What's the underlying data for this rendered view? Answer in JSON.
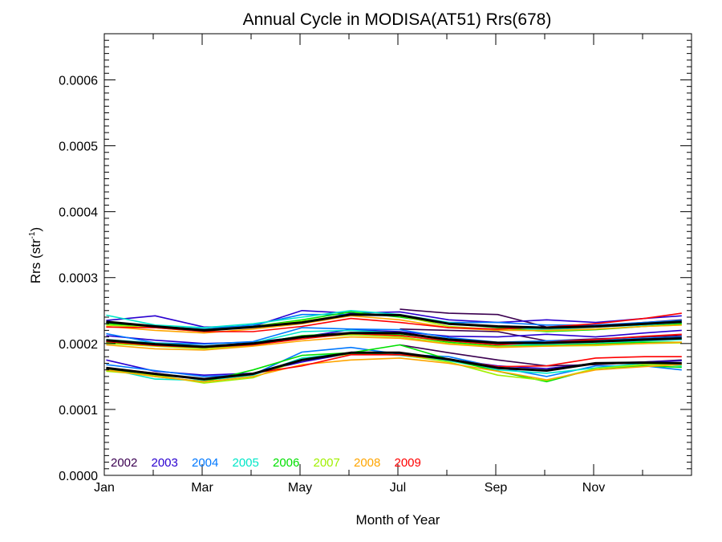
{
  "chart_data": {
    "type": "line",
    "title": "Annual Cycle in MODISA(AT51) Rrs(678)",
    "xlabel": "Month of Year",
    "ylabel_main": "Rrs (str",
    "ylabel_sup": "-1",
    "ylabel_close": ")",
    "xlim": [
      0,
      12
    ],
    "ylim": [
      0,
      0.00067
    ],
    "xticks": [
      {
        "value": 0,
        "label": "Jan"
      },
      {
        "value": 2,
        "label": "Mar"
      },
      {
        "value": 4,
        "label": "May"
      },
      {
        "value": 6,
        "label": "Jul"
      },
      {
        "value": 8,
        "label": "Sep"
      },
      {
        "value": 10,
        "label": "Nov"
      }
    ],
    "yticks": [
      {
        "value": 0.0,
        "label": "0.0000"
      },
      {
        "value": 0.0001,
        "label": "0.0001"
      },
      {
        "value": 0.0002,
        "label": "0.0002"
      },
      {
        "value": 0.0003,
        "label": "0.0003"
      },
      {
        "value": 0.0004,
        "label": "0.0004"
      },
      {
        "value": 0.0005,
        "label": "0.0005"
      },
      {
        "value": 0.0006,
        "label": "0.0006"
      }
    ],
    "x": [
      0.04,
      1.04,
      2.04,
      3.04,
      4.04,
      5.04,
      6.04,
      7.04,
      8.04,
      9.04,
      10.04,
      11.04,
      11.8
    ],
    "legend_position": "bottom-left",
    "series": [
      {
        "name": "2002",
        "color": "#3b0050",
        "upper": [
          null,
          null,
          null,
          null,
          null,
          null,
          0.000252,
          0.000246,
          0.000244,
          0.000225,
          0.000227,
          0.000232,
          0.000236
        ],
        "mean": [
          null,
          null,
          null,
          null,
          null,
          null,
          0.000222,
          0.00022,
          0.000218,
          0.000204,
          0.000207,
          0.00021,
          0.000212
        ],
        "lower": [
          null,
          null,
          null,
          null,
          null,
          null,
          0.000198,
          0.000186,
          0.000175,
          0.000166,
          0.000168,
          0.000172,
          0.000175
        ]
      },
      {
        "name": "2003",
        "color": "#2a00d0",
        "upper": [
          0.000235,
          0.000242,
          0.000225,
          0.000226,
          0.00025,
          0.000246,
          0.000248,
          0.000236,
          0.000232,
          0.000236,
          0.000232,
          0.000238,
          0.000242
        ],
        "mean": [
          0.000212,
          0.000205,
          0.0002,
          0.000202,
          0.00021,
          0.000221,
          0.000218,
          0.000211,
          0.00021,
          0.000214,
          0.00021,
          0.000216,
          0.00022
        ],
        "lower": [
          0.000175,
          0.000158,
          0.000152,
          0.000155,
          0.000172,
          0.000185,
          0.000186,
          0.000176,
          0.000166,
          0.000162,
          0.00017,
          0.000172,
          0.000174
        ]
      },
      {
        "name": "2004",
        "color": "#0078ff",
        "upper": [
          0.000232,
          0.000226,
          0.000222,
          0.000228,
          0.000244,
          0.000244,
          0.000243,
          0.000232,
          0.000232,
          0.000228,
          0.000228,
          0.000232,
          0.000235
        ],
        "mean": [
          0.000215,
          0.000201,
          0.000199,
          0.000203,
          0.000224,
          0.000222,
          0.000221,
          0.000209,
          0.000202,
          0.000204,
          0.000205,
          0.000208,
          0.00021
        ],
        "lower": [
          0.000168,
          0.000159,
          0.00015,
          0.000153,
          0.000187,
          0.000194,
          0.000184,
          0.00018,
          0.000164,
          0.00015,
          0.000166,
          0.000166,
          0.00016
        ]
      },
      {
        "name": "2005",
        "color": "#00e6c8",
        "upper": [
          0.000243,
          0.000228,
          0.000224,
          0.00023,
          0.00024,
          0.00025,
          0.000244,
          0.000232,
          0.000224,
          0.000221,
          0.000225,
          0.000228,
          0.000232
        ],
        "mean": [
          0.000206,
          0.000201,
          0.000196,
          0.000201,
          0.000218,
          0.00022,
          0.000216,
          0.000205,
          0.000199,
          0.000198,
          0.0002,
          0.000204,
          0.000206
        ],
        "lower": [
          0.000162,
          0.000146,
          0.000144,
          0.000152,
          0.000178,
          0.000186,
          0.000182,
          0.000174,
          0.00016,
          0.000155,
          0.000163,
          0.00017,
          0.000166
        ]
      },
      {
        "name": "2006",
        "color": "#00e000",
        "upper": [
          0.00023,
          0.000226,
          0.000221,
          0.000226,
          0.000236,
          0.000248,
          0.00024,
          0.00023,
          0.000224,
          0.000218,
          0.000221,
          0.000226,
          0.00023
        ],
        "mean": [
          0.000202,
          0.000197,
          0.000194,
          0.000199,
          0.000212,
          0.000216,
          0.000213,
          0.000202,
          0.000196,
          0.000197,
          0.000199,
          0.000202,
          0.000202
        ],
        "lower": [
          0.000162,
          0.00015,
          0.000142,
          0.00016,
          0.000182,
          0.000186,
          0.000198,
          0.000176,
          0.000158,
          0.000142,
          0.000162,
          0.000166,
          0.000164
        ]
      },
      {
        "name": "2007",
        "color": "#a0f000",
        "upper": [
          0.000228,
          0.000224,
          0.000218,
          0.000226,
          0.000234,
          0.000244,
          0.000242,
          0.000226,
          0.000221,
          0.000219,
          0.000222,
          0.000226,
          0.000228
        ],
        "mean": [
          0.0002,
          0.000196,
          0.000192,
          0.000197,
          0.000209,
          0.000213,
          0.00021,
          0.0002,
          0.000195,
          0.000196,
          0.000197,
          0.0002,
          0.000201
        ],
        "lower": [
          0.000158,
          0.000152,
          0.00014,
          0.000148,
          0.000176,
          0.000184,
          0.000183,
          0.000172,
          0.000152,
          0.000144,
          0.000162,
          0.000168,
          0.000168
        ]
      },
      {
        "name": "2008",
        "color": "#ffa500",
        "upper": [
          0.000226,
          0.00022,
          0.000216,
          0.000222,
          0.00023,
          0.000242,
          0.000236,
          0.000224,
          0.00022,
          0.00022,
          0.000222,
          0.000226,
          0.000228
        ],
        "mean": [
          0.000198,
          0.000192,
          0.00019,
          0.000196,
          0.000204,
          0.00021,
          0.000208,
          0.000199,
          0.000194,
          0.000196,
          0.000198,
          0.0002,
          0.000202
        ],
        "lower": [
          0.00016,
          0.00015,
          0.000142,
          0.00015,
          0.000168,
          0.000175,
          0.000178,
          0.00017,
          0.000158,
          0.000145,
          0.00016,
          0.000165,
          0.000168
        ]
      },
      {
        "name": "2009",
        "color": "#ff0000",
        "upper": [
          0.000225,
          0.000224,
          0.000218,
          0.000218,
          0.000226,
          0.000238,
          0.000232,
          0.000224,
          0.000222,
          0.000225,
          0.00023,
          0.000238,
          0.000246
        ],
        "mean": [
          0.000203,
          0.000197,
          0.000194,
          0.000198,
          0.000207,
          0.000215,
          0.000212,
          0.000204,
          0.000198,
          0.000202,
          0.000206,
          0.000211,
          0.000214
        ],
        "lower": [
          0.000163,
          0.000155,
          0.000145,
          0.000155,
          0.000166,
          0.000183,
          0.000183,
          0.000176,
          0.000165,
          0.000166,
          0.000178,
          0.00018,
          0.00018
        ]
      }
    ],
    "climatology": {
      "color": "#000000",
      "upper": [
        0.000233,
        0.000226,
        0.00022,
        0.000225,
        0.000232,
        0.000244,
        0.000243,
        0.00023,
        0.000226,
        0.000224,
        0.000226,
        0.00023,
        0.000233
      ],
      "mean": [
        0.000205,
        0.000199,
        0.000195,
        0.0002,
        0.00021,
        0.000216,
        0.000216,
        0.000206,
        0.000201,
        0.000201,
        0.000203,
        0.000206,
        0.000208
      ],
      "lower": [
        0.000163,
        0.000154,
        0.000146,
        0.000154,
        0.000175,
        0.000186,
        0.000186,
        0.000176,
        0.000163,
        0.000159,
        0.00017,
        0.000171,
        0.00017
      ]
    }
  }
}
